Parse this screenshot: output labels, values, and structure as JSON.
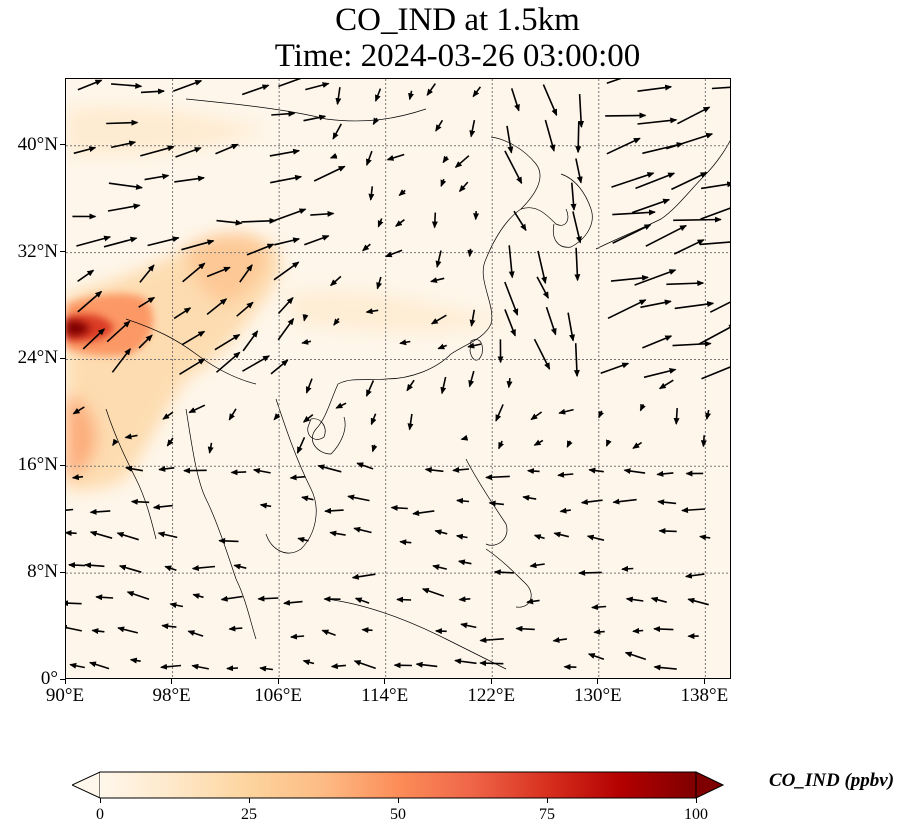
{
  "title": {
    "line1": "CO_IND at 1.5km",
    "line2": "Time: 2024-03-26 03:00:00"
  },
  "map": {
    "lon_range": [
      90,
      140
    ],
    "lat_range": [
      0,
      45
    ],
    "lon_ticks": [
      {
        "value": 90,
        "label": "90°E"
      },
      {
        "value": 98,
        "label": "98°E"
      },
      {
        "value": 106,
        "label": "106°E"
      },
      {
        "value": 114,
        "label": "114°E"
      },
      {
        "value": 122,
        "label": "122°E"
      },
      {
        "value": 130,
        "label": "130°E"
      },
      {
        "value": 138,
        "label": "138°E"
      }
    ],
    "lat_ticks": [
      {
        "value": 0,
        "label": "0°"
      },
      {
        "value": 8,
        "label": "8°N"
      },
      {
        "value": 16,
        "label": "16°N"
      },
      {
        "value": 24,
        "label": "24°N"
      },
      {
        "value": 32,
        "label": "32°N"
      },
      {
        "value": 40,
        "label": "40°N"
      }
    ],
    "gridlines": "dotted",
    "colormap": "OrRd",
    "background_color": "#fef6ea",
    "wind_vectors": "black"
  },
  "colorbar": {
    "label": "CO_IND (ppbv)",
    "min": 0,
    "max": 100,
    "extend": "both",
    "ticks": [
      {
        "value": 0,
        "label": "0"
      },
      {
        "value": 25,
        "label": "25"
      },
      {
        "value": 50,
        "label": "50"
      },
      {
        "value": 75,
        "label": "75"
      },
      {
        "value": 100,
        "label": "100"
      }
    ],
    "colors": [
      "#fff7ec",
      "#fee8c8",
      "#fdd49e",
      "#fdbb84",
      "#fc8d59",
      "#ef6548",
      "#d7301f",
      "#b30000",
      "#7f0000"
    ]
  }
}
